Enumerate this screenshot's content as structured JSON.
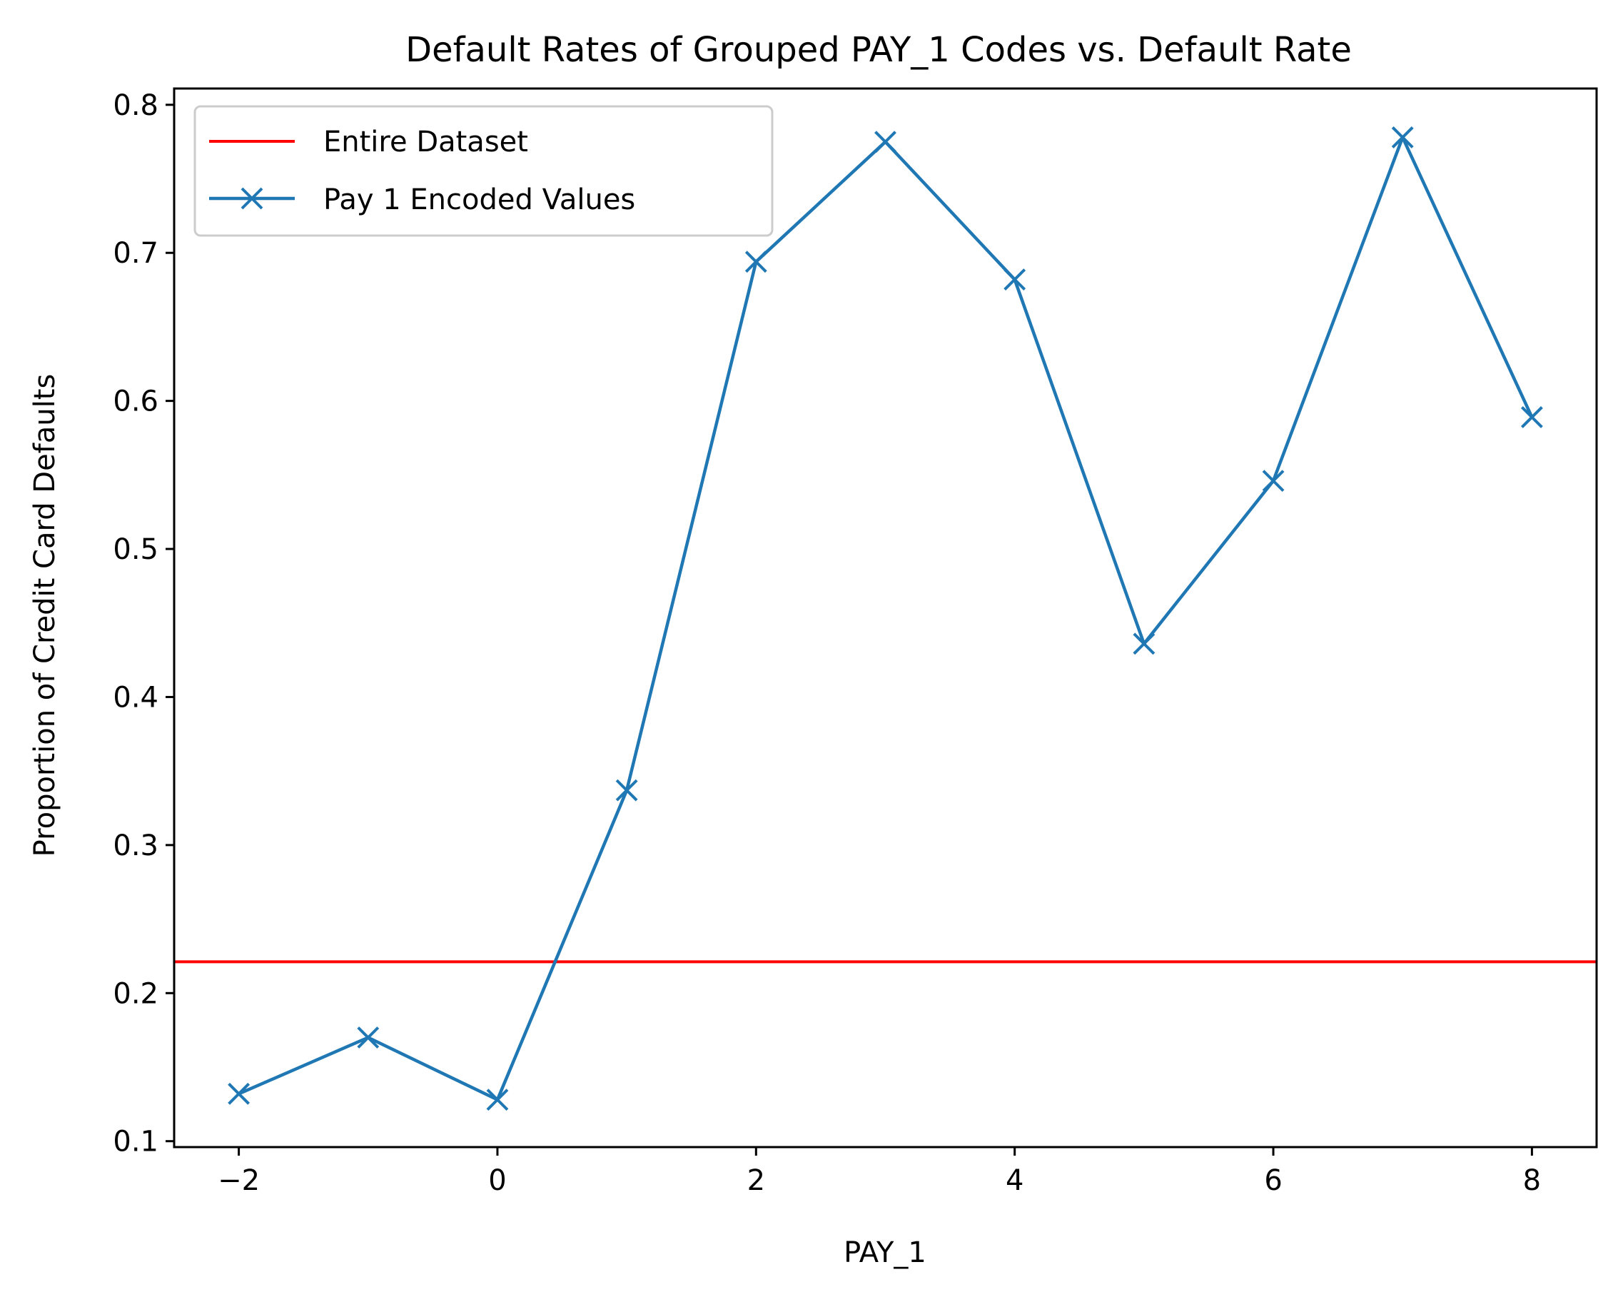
{
  "chart_data": {
    "type": "line",
    "title": "Default Rates of Grouped PAY_1 Codes vs. Default Rate",
    "xlabel": "PAY_1",
    "ylabel": "Proportion of Credit Card Defaults",
    "xlim": [
      -2.5,
      8.5
    ],
    "ylim": [
      0.096,
      0.811
    ],
    "x_ticks": [
      -2,
      0,
      2,
      4,
      6,
      8
    ],
    "x_tick_labels": [
      "−2",
      "0",
      "2",
      "4",
      "6",
      "8"
    ],
    "y_ticks": [
      0.1,
      0.2,
      0.3,
      0.4,
      0.5,
      0.6,
      0.7,
      0.8
    ],
    "y_tick_labels": [
      "0.1",
      "0.2",
      "0.3",
      "0.4",
      "0.5",
      "0.6",
      "0.7",
      "0.8"
    ],
    "grid": false,
    "legend_position": "top-left",
    "hline": {
      "name": "Entire Dataset",
      "y": 0.2212,
      "color": "#ff0000"
    },
    "series": [
      {
        "name": "Pay 1 Encoded Values",
        "color": "#1f77b4",
        "marker": "x",
        "x": [
          -2,
          -1,
          0,
          1,
          2,
          3,
          4,
          5,
          6,
          7,
          8
        ],
        "y": [
          0.132,
          0.17,
          0.128,
          0.337,
          0.694,
          0.775,
          0.682,
          0.436,
          0.546,
          0.778,
          0.589
        ]
      }
    ]
  }
}
